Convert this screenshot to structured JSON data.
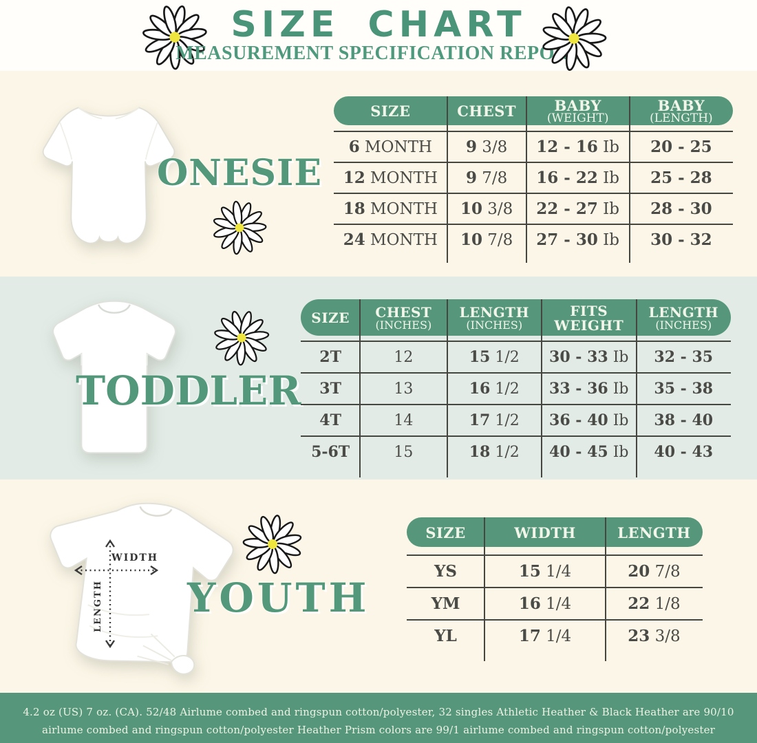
{
  "header": {
    "title": "SIZE CHART",
    "subtitle": "MEASUREMENT SPECIFICATION REPORT"
  },
  "sections": [
    {
      "id": "onesie",
      "label": "ONESIE",
      "table": {
        "cols": [
          28.4,
          19.8,
          25.9,
          25.9
        ],
        "headers": [
          [
            {
              "t": "SIZE"
            }
          ],
          [
            {
              "t": "CHEST"
            }
          ],
          [
            {
              "t": "BABY"
            },
            {
              "t": "(WEIGHT)",
              "sub": true
            }
          ],
          [
            {
              "t": "BABY"
            },
            {
              "t": "(LENGTH)",
              "sub": true
            }
          ]
        ],
        "rows": [
          [
            [
              {
                "t": "6",
                "b": true
              },
              {
                "t": " MONTH"
              }
            ],
            [
              {
                "t": "9",
                "b": true
              },
              {
                "t": " 3/8"
              }
            ],
            [
              {
                "t": "12 - 16",
                "b": true
              },
              {
                "t": " Ib"
              }
            ],
            [
              {
                "t": "20 - 25",
                "b": true
              }
            ]
          ],
          [
            [
              {
                "t": "12",
                "b": true
              },
              {
                "t": " MONTH"
              }
            ],
            [
              {
                "t": "9",
                "b": true
              },
              {
                "t": " 7/8"
              }
            ],
            [
              {
                "t": "16 - 22",
                "b": true
              },
              {
                "t": " Ib"
              }
            ],
            [
              {
                "t": "25 - 28",
                "b": true
              }
            ]
          ],
          [
            [
              {
                "t": "18",
                "b": true
              },
              {
                "t": " MONTH"
              }
            ],
            [
              {
                "t": "10",
                "b": true
              },
              {
                "t": " 3/8"
              }
            ],
            [
              {
                "t": "22 - 27",
                "b": true
              },
              {
                "t": " Ib"
              }
            ],
            [
              {
                "t": "28 - 30",
                "b": true
              }
            ]
          ],
          [
            [
              {
                "t": "24",
                "b": true
              },
              {
                "t": " MONTH"
              }
            ],
            [
              {
                "t": "10",
                "b": true
              },
              {
                "t": " 7/8"
              }
            ],
            [
              {
                "t": "27 - 30",
                "b": true
              },
              {
                "t": " Ib"
              }
            ],
            [
              {
                "t": "30 - 32",
                "b": true
              }
            ]
          ]
        ]
      }
    },
    {
      "id": "toddler",
      "label": "TODDLER",
      "table": {
        "cols": [
          13.8,
          20.2,
          22,
          22,
          22
        ],
        "headers": [
          [
            {
              "t": "SIZE"
            }
          ],
          [
            {
              "t": "CHEST"
            },
            {
              "t": "(INCHES)",
              "sub": true
            }
          ],
          [
            {
              "t": "LENGTH"
            },
            {
              "t": "(INCHES)",
              "sub": true
            }
          ],
          [
            {
              "t": "FITS"
            },
            {
              "t": "WEIGHT"
            }
          ],
          [
            {
              "t": "LENGTH"
            },
            {
              "t": "(INCHES)",
              "sub": true
            }
          ]
        ],
        "rows": [
          [
            [
              {
                "t": "2T",
                "b": true
              }
            ],
            [
              {
                "t": "12"
              }
            ],
            [
              {
                "t": "15",
                "b": true
              },
              {
                "t": " 1/2"
              }
            ],
            [
              {
                "t": "30 - 33",
                "b": true
              },
              {
                "t": " Ib"
              }
            ],
            [
              {
                "t": "32 - 35",
                "b": true
              }
            ]
          ],
          [
            [
              {
                "t": "3T",
                "b": true
              }
            ],
            [
              {
                "t": "13"
              }
            ],
            [
              {
                "t": "16",
                "b": true
              },
              {
                "t": " 1/2"
              }
            ],
            [
              {
                "t": "33 - 36",
                "b": true
              },
              {
                "t": " Ib"
              }
            ],
            [
              {
                "t": "35 - 38",
                "b": true
              }
            ]
          ],
          [
            [
              {
                "t": "4T",
                "b": true
              }
            ],
            [
              {
                "t": "14"
              }
            ],
            [
              {
                "t": "17",
                "b": true
              },
              {
                "t": " 1/2"
              }
            ],
            [
              {
                "t": "36 - 40",
                "b": true
              },
              {
                "t": " Ib"
              }
            ],
            [
              {
                "t": "38 - 40",
                "b": true
              }
            ]
          ],
          [
            [
              {
                "t": "5-6T",
                "b": true
              }
            ],
            [
              {
                "t": "15"
              }
            ],
            [
              {
                "t": "18",
                "b": true
              },
              {
                "t": " 1/2"
              }
            ],
            [
              {
                "t": "40 - 45",
                "b": true
              },
              {
                "t": " Ib"
              }
            ],
            [
              {
                "t": "40 - 43",
                "b": true
              }
            ]
          ]
        ]
      }
    },
    {
      "id": "youth",
      "label": "YOUTH",
      "diagram": {
        "width_label": "WIDTH",
        "length_label": "LENGTH"
      },
      "table": {
        "cols": [
          26.3,
          40.9,
          32.8
        ],
        "headers": [
          [
            {
              "t": "SIZE"
            }
          ],
          [
            {
              "t": "WIDTH"
            }
          ],
          [
            {
              "t": "LENGTH"
            }
          ]
        ],
        "rows": [
          [
            [
              {
                "t": "YS",
                "b": true
              }
            ],
            [
              {
                "t": "15",
                "b": true
              },
              {
                "t": " 1/4"
              }
            ],
            [
              {
                "t": "20",
                "b": true
              },
              {
                "t": " 7/8"
              }
            ]
          ],
          [
            [
              {
                "t": "YM",
                "b": true
              }
            ],
            [
              {
                "t": "16",
                "b": true
              },
              {
                "t": " 1/4"
              }
            ],
            [
              {
                "t": "22",
                "b": true
              },
              {
                "t": " 1/8"
              }
            ]
          ],
          [
            [
              {
                "t": "YL",
                "b": true
              }
            ],
            [
              {
                "t": "17",
                "b": true
              },
              {
                "t": " 1/4"
              }
            ],
            [
              {
                "t": "23",
                "b": true
              },
              {
                "t": " 3/8"
              }
            ]
          ]
        ]
      }
    }
  ],
  "footer": {
    "text": "4.2 oz (US) 7 oz. (CA). 52/48 Airlume combed and ringspun cotton/polyester, 32 singles Athletic Heather & Black Heather are 90/10 airlume combed and ringspun cotton/polyester Heather Prism colors are 99/1 airlume combed and ringspun cotton/polyester"
  },
  "colors": {
    "green": "#56977c",
    "title_green": "#4a9579",
    "cream": "#fbf6e7",
    "mint": "#e2ebe6",
    "table_text": "#4a4a46",
    "header_text": "#f1f5ea",
    "daisy_center": "#eee63e"
  }
}
